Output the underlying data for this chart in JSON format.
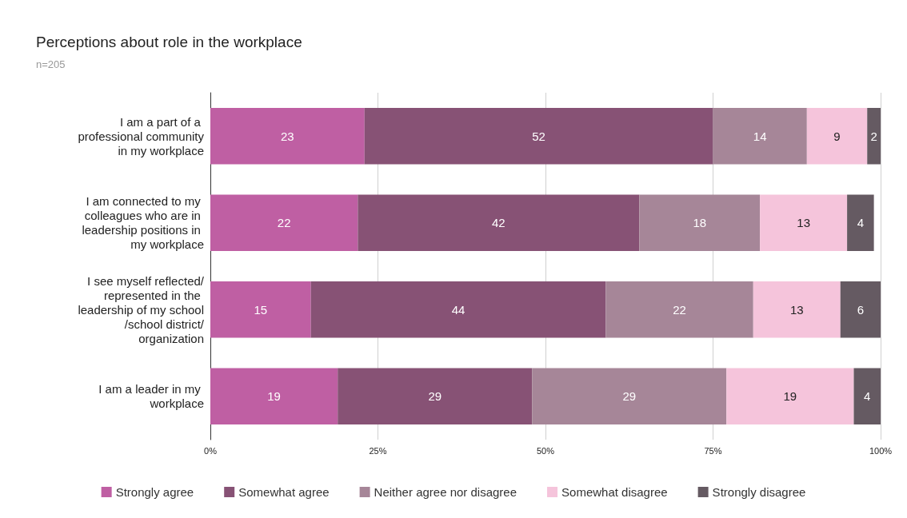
{
  "chart_data": {
    "type": "bar",
    "orientation": "horizontal",
    "stacked": true,
    "title": "Perceptions about role in the workplace",
    "subtitle": "n=205",
    "categories": [
      "I am a part of a professional community in my workplace",
      "I am connected to my colleagues who are in leadership positions in my workplace",
      "I see myself reflected/represented in the leadership of my school/school district/organization",
      "I am a leader in my workplace"
    ],
    "series": [
      {
        "name": "Strongly agree",
        "color": "#bf5fa3",
        "values": [
          23,
          22,
          15,
          19
        ]
      },
      {
        "name": "Somewhat agree",
        "color": "#875275",
        "values": [
          52,
          42,
          44,
          29
        ]
      },
      {
        "name": "Neither agree nor disagree",
        "color": "#a68698",
        "values": [
          14,
          18,
          22,
          29
        ]
      },
      {
        "name": "Somewhat disagree",
        "color": "#f5c4db",
        "values": [
          9,
          13,
          13,
          19
        ]
      },
      {
        "name": "Strongly disagree",
        "color": "#655a62",
        "values": [
          2,
          4,
          6,
          4
        ]
      }
    ],
    "xlim": [
      0,
      100
    ],
    "xticks": [
      {
        "value": 0,
        "label": "0%"
      },
      {
        "value": 25,
        "label": "25%"
      },
      {
        "value": 50,
        "label": "50%"
      },
      {
        "value": 75,
        "label": "75%"
      },
      {
        "value": 100,
        "label": "100%"
      }
    ],
    "grid": "x",
    "legend": "bottom",
    "data_labels": true
  }
}
